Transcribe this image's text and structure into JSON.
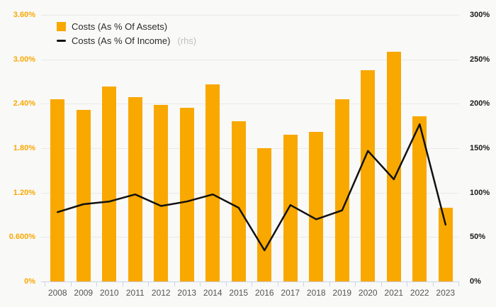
{
  "legend": {
    "items": [
      {
        "label": "Costs (As % Of Assets)",
        "note": "",
        "marker": "bar-swatch-icon"
      },
      {
        "label": "Costs (As % Of Income)",
        "note": "(rhs)",
        "marker": "line-swatch-icon"
      }
    ]
  },
  "chart_data": {
    "type": "bar+line",
    "categories": [
      "2008",
      "2009",
      "2010",
      "2011",
      "2012",
      "2013",
      "2014",
      "2015",
      "2016",
      "2017",
      "2018",
      "2019",
      "2020",
      "2021",
      "2022",
      "2023"
    ],
    "series": [
      {
        "name": "Costs (As % Of Assets)",
        "type": "bar",
        "axis": "left",
        "values": [
          2.46,
          2.32,
          2.63,
          2.49,
          2.38,
          2.35,
          2.66,
          2.16,
          1.8,
          1.98,
          2.02,
          2.46,
          2.85,
          3.1,
          2.23,
          1.0
        ]
      },
      {
        "name": "Costs (As % Of Income)",
        "type": "line",
        "axis": "right",
        "values": [
          78,
          87,
          90,
          98,
          85,
          90,
          98,
          83,
          35,
          86,
          70,
          80,
          147,
          115,
          177,
          64
        ]
      }
    ],
    "left_axis": {
      "min": 0,
      "max": 3.6,
      "ticks": [
        {
          "value": 0,
          "label": "0%"
        },
        {
          "value": 0.6,
          "label": "0.600%"
        },
        {
          "value": 1.2,
          "label": "1.20%"
        },
        {
          "value": 1.8,
          "label": "1.80%"
        },
        {
          "value": 2.4,
          "label": "2.40%"
        },
        {
          "value": 3.0,
          "label": "3.00%"
        },
        {
          "value": 3.6,
          "label": "3.60%"
        }
      ]
    },
    "right_axis": {
      "min": 0,
      "max": 300,
      "ticks": [
        {
          "value": 0,
          "label": "0%"
        },
        {
          "value": 50,
          "label": "50%"
        },
        {
          "value": 100,
          "label": "100%"
        },
        {
          "value": 150,
          "label": "150%"
        },
        {
          "value": 200,
          "label": "200%"
        },
        {
          "value": 250,
          "label": "250%"
        },
        {
          "value": 300,
          "label": "300%"
        }
      ]
    },
    "grid": true,
    "legend_position": "top-left"
  },
  "colors": {
    "background": "#f9f9f8",
    "bar": "#f9a800",
    "line": "#111111",
    "left_tick_label": "#f9a800",
    "right_tick_label": "#1a1a1a",
    "year_label": "#555555",
    "gridline": "#e9e9e7",
    "axis_line": "#ccd3e6",
    "legend_text": "#2b2b2b",
    "legend_note": "#c0c0c0"
  }
}
